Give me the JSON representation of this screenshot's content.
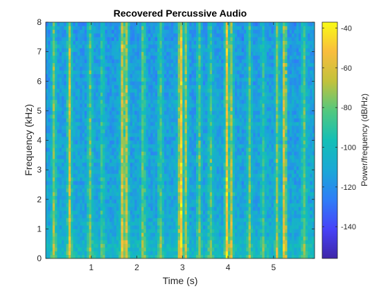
{
  "chart_data": {
    "type": "heatmap",
    "title": "Recovered Percussive Audio",
    "xlabel": "Time (s)",
    "ylabel": "Frequency (kHz)",
    "xlim": [
      0,
      5.9
    ],
    "ylim": [
      0,
      8
    ],
    "xticks": [
      1,
      2,
      3,
      4,
      5
    ],
    "yticks": [
      0,
      1,
      2,
      3,
      4,
      5,
      6,
      7,
      8
    ],
    "colorbar": {
      "label": "Power/frequency (dB/Hz)",
      "range": [
        -156,
        -37
      ],
      "ticks": [
        -140,
        -120,
        -100,
        -80,
        -60,
        -40
      ],
      "colormap": [
        "#3e26a8",
        "#4743f8",
        "#2e7ef7",
        "#1aa8d6",
        "#13bfb6",
        "#53c87f",
        "#c2c23c",
        "#f9bd3d",
        "#f9fb15"
      ]
    },
    "grid_resolution": {
      "time_bins": 118,
      "freq_bins": 64
    },
    "transient_times_s": [
      0.18,
      0.52,
      0.97,
      1.24,
      1.69,
      1.77,
      2.14,
      2.52,
      2.96,
      3.07,
      3.37,
      3.62,
      3.98,
      4.07,
      4.47,
      4.77,
      5.08,
      5.24,
      5.67
    ],
    "transient_strength": [
      0.55,
      0.75,
      0.5,
      0.35,
      0.85,
      0.7,
      0.55,
      0.5,
      1.0,
      0.6,
      0.5,
      0.45,
      0.9,
      0.65,
      0.5,
      0.4,
      0.55,
      0.8,
      0.5
    ],
    "floor_db": -110,
    "peak_db": -42
  }
}
